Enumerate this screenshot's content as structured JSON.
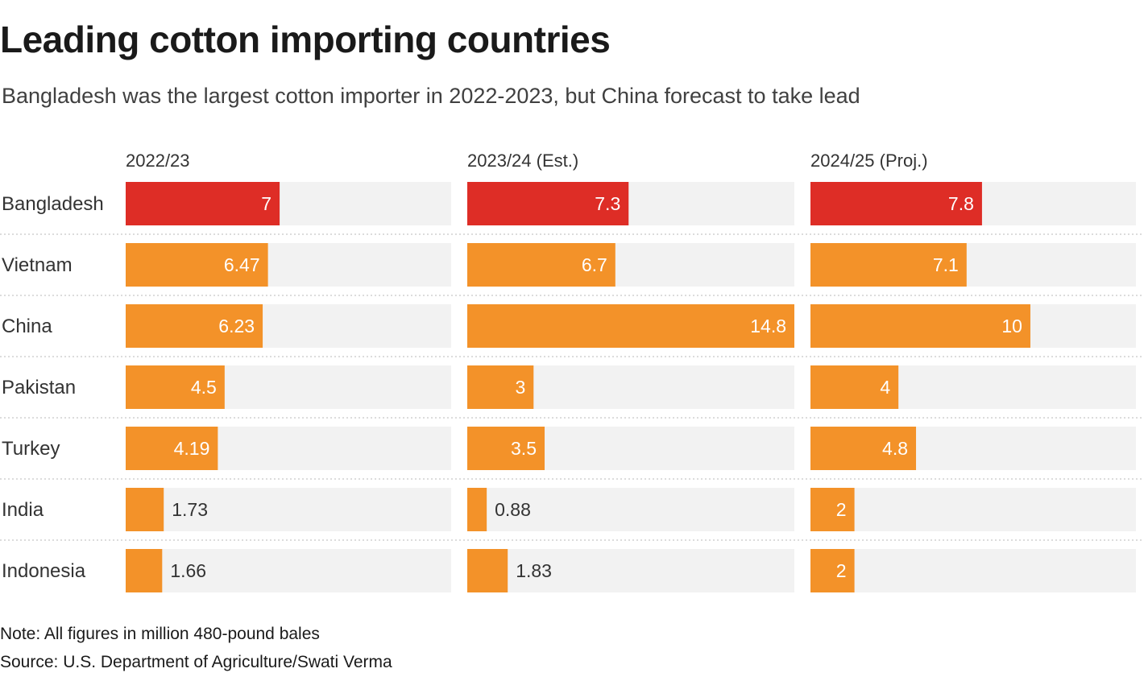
{
  "title": "Leading cotton importing countries",
  "subtitle": "Bangladesh was the largest cotton importer in 2022-2023, but China forecast to take lead",
  "note": "Note: All figures in million 480-pound bales",
  "source": "Source: U.S. Department of Agriculture/Swati Verma",
  "colors": {
    "highlight": "#de2d26",
    "bar": "#f39229",
    "track": "#f2f2f2",
    "separator": "#c8c8c8",
    "label_inside": "#ffffff",
    "label_outside": "#333333"
  },
  "chart_data": {
    "type": "bar",
    "orientation": "horizontal",
    "unit": "million 480-pound bales",
    "categories": [
      "Bangladesh",
      "Vietnam",
      "China",
      "Pakistan",
      "Turkey",
      "India",
      "Indonesia"
    ],
    "xlim": [
      0,
      14.8
    ],
    "highlight_category": "Bangladesh",
    "series": [
      {
        "name": "2022/23",
        "values": [
          7,
          6.47,
          6.23,
          4.5,
          4.19,
          1.73,
          1.66
        ],
        "labels": [
          "7",
          "6.47",
          "6.23",
          "4.5",
          "4.19",
          "1.73",
          "1.66"
        ]
      },
      {
        "name": "2023/24 (Est.)",
        "values": [
          7.3,
          6.7,
          14.8,
          3,
          3.5,
          0.88,
          1.83
        ],
        "labels": [
          "7.3",
          "6.7",
          "14.8",
          "3",
          "3.5",
          "0.88",
          "1.83"
        ]
      },
      {
        "name": "2024/25 (Proj.)",
        "values": [
          7.8,
          7.1,
          10,
          4,
          4.8,
          2,
          2
        ],
        "labels": [
          "7.8",
          "7.1",
          "10",
          "4",
          "4.8",
          "2",
          "2"
        ]
      }
    ]
  }
}
